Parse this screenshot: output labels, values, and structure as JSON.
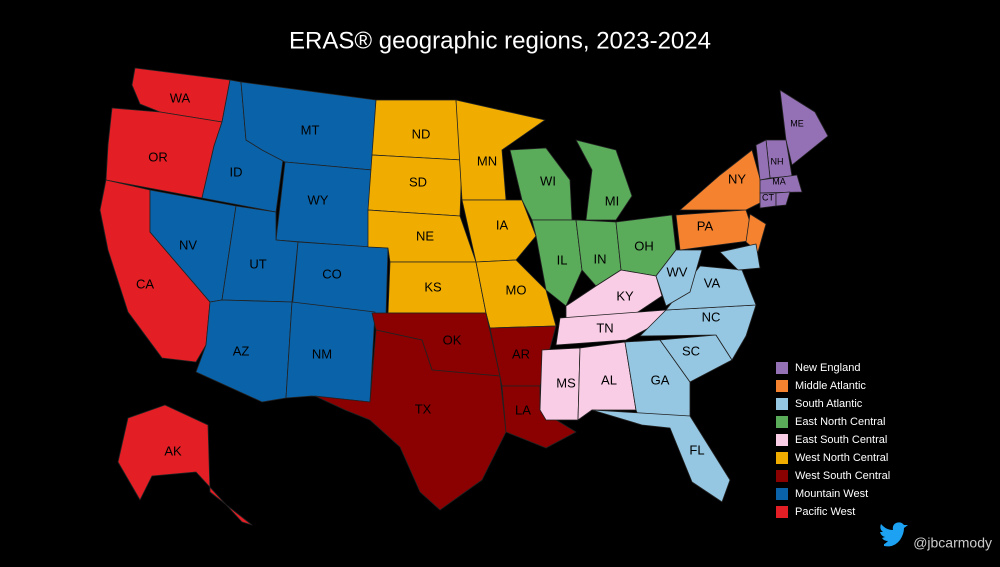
{
  "title": "ERAS® geographic regions, 2023-2024",
  "regions": [
    {
      "name": "New England",
      "color": "#9470b5"
    },
    {
      "name": "Middle Atlantic",
      "color": "#f5822f"
    },
    {
      "name": "South Atlantic",
      "color": "#95c6e2"
    },
    {
      "name": "East North Central",
      "color": "#5aab5a"
    },
    {
      "name": "East South Central",
      "color": "#f9cde6"
    },
    {
      "name": "West North Central",
      "color": "#f0ad00"
    },
    {
      "name": "West South Central",
      "color": "#8b0000"
    },
    {
      "name": "Mountain West",
      "color": "#0a62a9"
    },
    {
      "name": "Pacific West",
      "color": "#e31e24"
    }
  ],
  "states": [
    {
      "label": "WA",
      "region": 8
    },
    {
      "label": "OR",
      "region": 8
    },
    {
      "label": "CA",
      "region": 8
    },
    {
      "label": "AK",
      "region": 8
    },
    {
      "label": "ID",
      "region": 7
    },
    {
      "label": "MT",
      "region": 7
    },
    {
      "label": "WY",
      "region": 7
    },
    {
      "label": "NV",
      "region": 7
    },
    {
      "label": "UT",
      "region": 7
    },
    {
      "label": "CO",
      "region": 7
    },
    {
      "label": "AZ",
      "region": 7
    },
    {
      "label": "NM",
      "region": 7
    },
    {
      "label": "ND",
      "region": 5
    },
    {
      "label": "SD",
      "region": 5
    },
    {
      "label": "NE",
      "region": 5
    },
    {
      "label": "KS",
      "region": 5
    },
    {
      "label": "MN",
      "region": 5
    },
    {
      "label": "IA",
      "region": 5
    },
    {
      "label": "MO",
      "region": 5
    },
    {
      "label": "OK",
      "region": 6
    },
    {
      "label": "TX",
      "region": 6
    },
    {
      "label": "AR",
      "region": 6
    },
    {
      "label": "LA",
      "region": 6
    },
    {
      "label": "WI",
      "region": 3
    },
    {
      "label": "MI",
      "region": 3
    },
    {
      "label": "IL",
      "region": 3
    },
    {
      "label": "IN",
      "region": 3
    },
    {
      "label": "OH",
      "region": 3
    },
    {
      "label": "KY",
      "region": 4
    },
    {
      "label": "TN",
      "region": 4
    },
    {
      "label": "MS",
      "region": 4
    },
    {
      "label": "AL",
      "region": 4
    },
    {
      "label": "GA",
      "region": 2
    },
    {
      "label": "FL",
      "region": 2
    },
    {
      "label": "SC",
      "region": 2
    },
    {
      "label": "NC",
      "region": 2
    },
    {
      "label": "VA",
      "region": 2
    },
    {
      "label": "WV",
      "region": 2
    },
    {
      "label": "PA",
      "region": 1
    },
    {
      "label": "NY",
      "region": 1
    },
    {
      "label": "ME",
      "region": 0
    },
    {
      "label": "NH",
      "region": 0
    },
    {
      "label": "MA",
      "region": 0
    },
    {
      "label": "CT",
      "region": 0
    }
  ],
  "credit": "@jbcarmody"
}
